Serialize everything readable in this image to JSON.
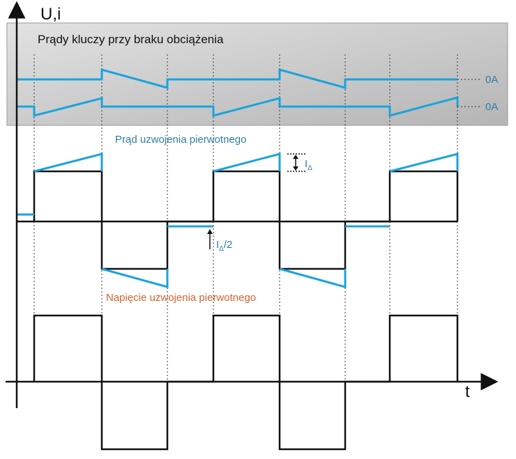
{
  "axes": {
    "y_label": "U,i",
    "x_label": "t"
  },
  "panel": {
    "title": "Prądy kluczy przy braku obciążenia"
  },
  "switch_currents": {
    "zero_label_1": "0A",
    "zero_label_2": "0A"
  },
  "primary_current": {
    "label": "Prąd uzwojenia pierwotnego",
    "delta_label": "I",
    "delta_sub": "Δ",
    "half_delta_label": "I",
    "half_delta_sub": "Δ",
    "half_delta_suffix": "/2"
  },
  "primary_voltage": {
    "label": "Napięcie uzwojenia pierwotnego"
  },
  "colors": {
    "current": "#1aa3dd",
    "voltage": "#111111",
    "voltage_label": "#d4622a",
    "current_label": "#2e7fa9",
    "panel_bg": "#c9c9c9"
  }
}
